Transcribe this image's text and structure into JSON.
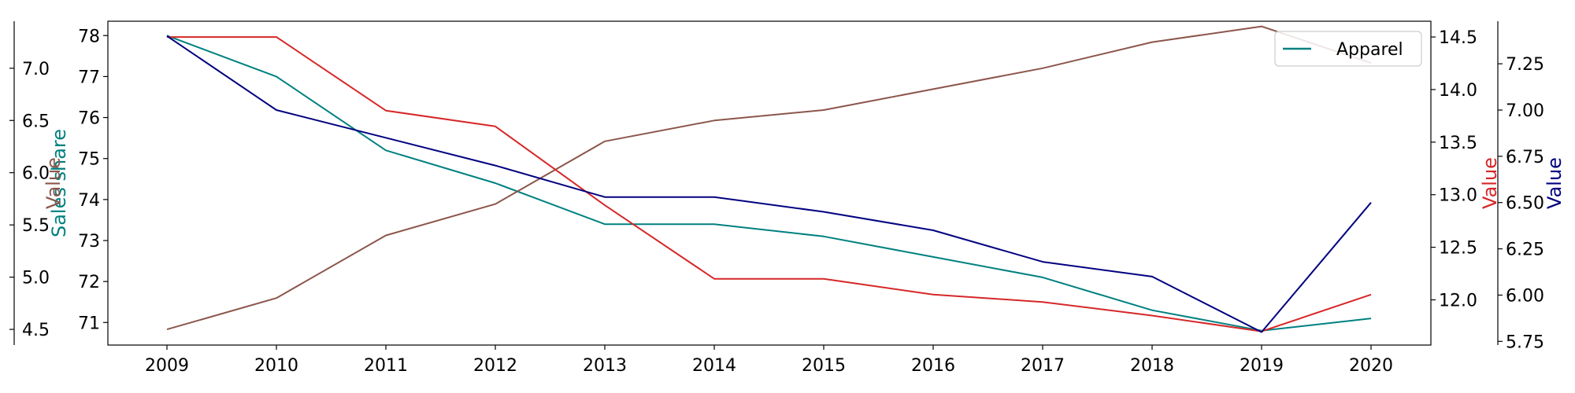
{
  "chart_data": {
    "type": "line",
    "x": [
      2009,
      2010,
      2011,
      2012,
      2013,
      2014,
      2015,
      2016,
      2017,
      2018,
      2019,
      2020
    ],
    "x_tick_labels": [
      "2009",
      "2010",
      "2011",
      "2012",
      "2013",
      "2014",
      "2015",
      "2016",
      "2017",
      "2018",
      "2019",
      "2020"
    ],
    "title": "",
    "xlabel": "",
    "grid": false,
    "legend": {
      "placement": "top-right",
      "entries": [
        "Apparel"
      ]
    },
    "axes": {
      "left_inner": {
        "label": "Sales share",
        "color": "#008080",
        "ylim": [
          70.45,
          78.35
        ],
        "ticks": [
          71,
          72,
          73,
          74,
          75,
          76,
          77,
          78
        ],
        "tick_labels": [
          "71",
          "72",
          "73",
          "74",
          "75",
          "76",
          "77",
          "78"
        ]
      },
      "left_outer": {
        "label": "Value",
        "color": "#8c564b",
        "ylim": [
          4.35,
          7.45
        ],
        "ticks": [
          4.5,
          5.0,
          5.5,
          6.0,
          6.5,
          7.0
        ],
        "tick_labels": [
          "4.5",
          "5.0",
          "5.5",
          "6.0",
          "6.5",
          "7.0"
        ]
      },
      "right_inner": {
        "label": "Value",
        "color": "#d62728",
        "ylim": [
          11.57,
          14.65
        ],
        "ticks": [
          12.0,
          12.5,
          13.0,
          13.5,
          14.0,
          14.5
        ],
        "tick_labels": [
          "12.0",
          "12.5",
          "13.0",
          "13.5",
          "14.0",
          "14.5"
        ]
      },
      "right_outer": {
        "label": "Value",
        "color": "#000080",
        "ylim": [
          5.73,
          7.48
        ],
        "ticks": [
          5.75,
          6.0,
          6.25,
          6.5,
          6.75,
          7.0,
          7.25
        ],
        "tick_labels": [
          "5.75",
          "6.00",
          "6.25",
          "6.50",
          "6.75",
          "7.00",
          "7.25"
        ]
      }
    },
    "series": [
      {
        "name": "Apparel",
        "axis": "left_inner",
        "color": "#008080",
        "values": [
          78.0,
          77.0,
          75.2,
          74.4,
          73.4,
          73.4,
          73.1,
          72.6,
          72.1,
          71.3,
          70.8,
          71.1
        ]
      },
      {
        "axis": "left_outer",
        "color": "#8c564b",
        "values": [
          4.5,
          4.8,
          5.4,
          5.7,
          6.3,
          6.5,
          6.6,
          6.8,
          7.0,
          7.25,
          7.4,
          7.05
        ]
      },
      {
        "axis": "right_inner",
        "color": "#d62728",
        "values": [
          14.5,
          14.5,
          13.8,
          13.65,
          12.9,
          12.2,
          12.2,
          12.05,
          11.98,
          11.85,
          11.7,
          12.05
        ]
      },
      {
        "axis": "right_outer",
        "color": "#000080",
        "values": [
          7.4,
          7.0,
          6.85,
          6.7,
          6.53,
          6.53,
          6.45,
          6.35,
          6.18,
          6.1,
          5.8,
          6.5
        ]
      }
    ]
  }
}
